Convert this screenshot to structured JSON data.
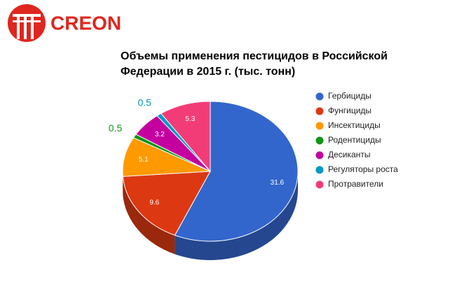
{
  "logo": {
    "text": "CREON"
  },
  "chart_data": {
    "type": "pie3d",
    "title": "Объемы применения пестицидов в Российской Федерации в 2015 г. (тыс. тонн)",
    "categories": [
      "Гербициды",
      "Фунгициды",
      "Инсектициды",
      "Родентициды",
      "Десиканты",
      "Регуляторы роста",
      "Протравители"
    ],
    "values": [
      31.6,
      9.6,
      5.1,
      0.5,
      3.2,
      0.5,
      5.3
    ],
    "colors": [
      "#3366cc",
      "#dc3912",
      "#ff9900",
      "#109618",
      "#c4009f",
      "#0099c6",
      "#f23c78"
    ],
    "legend": "right"
  }
}
